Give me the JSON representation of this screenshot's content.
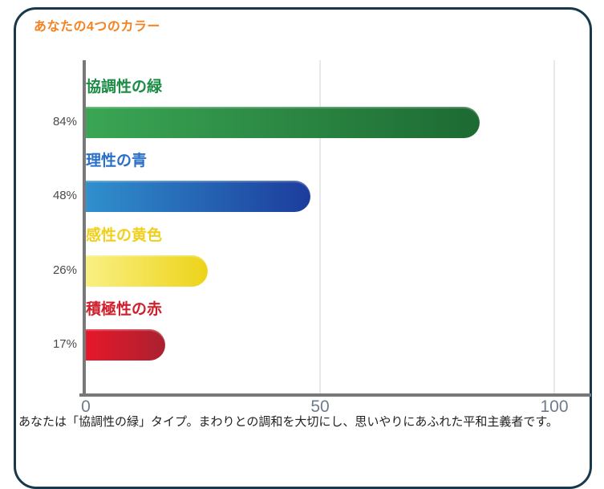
{
  "card": {
    "title": "あなたの4つのカラー",
    "title_color": "#f58220",
    "border_color": "#17394b"
  },
  "chart_data": {
    "type": "bar",
    "orientation": "horizontal",
    "title": "あなたの4つのカラー",
    "categories": [
      "協調性の緑",
      "理性の青",
      "感性の黄色",
      "積極性の赤"
    ],
    "values": [
      84,
      48,
      26,
      17
    ],
    "xlabel": "",
    "ylabel": "",
    "xlim": [
      0,
      100
    ],
    "x_ticks": [
      0,
      50,
      100
    ],
    "grid": "vertical-light",
    "legend": "none",
    "series": [
      {
        "label": "協調性の緑",
        "value": 84,
        "value_label": "84%",
        "label_color": "#1a8c44",
        "bar_gradient_from": "#3aa654",
        "bar_gradient_to": "#1d6a33"
      },
      {
        "label": "理性の青",
        "value": 48,
        "value_label": "48%",
        "label_color": "#2a70c8",
        "bar_gradient_from": "#3090cd",
        "bar_gradient_to": "#1c3c9c"
      },
      {
        "label": "感性の黄色",
        "value": 26,
        "value_label": "26%",
        "label_color": "#f0d01c",
        "bar_gradient_from": "#f9f083",
        "bar_gradient_to": "#edd319"
      },
      {
        "label": "積極性の赤",
        "value": 17,
        "value_label": "17%",
        "label_color": "#d01f2c",
        "bar_gradient_from": "#e6182a",
        "bar_gradient_to": "#aa2130"
      }
    ]
  },
  "axis": {
    "tick_labels": [
      "0",
      "50",
      "100"
    ],
    "tick_color": "#6e7b8c",
    "line_color": "#787878",
    "grid_color": "#e8e8e8",
    "value_label_color": "#4a4a4a"
  },
  "footer": {
    "clipped_text": "あなたは「協調性の緑」タイプ。まわりとの調和を大切にし、思いやりにあふれた平和主義者です。"
  }
}
